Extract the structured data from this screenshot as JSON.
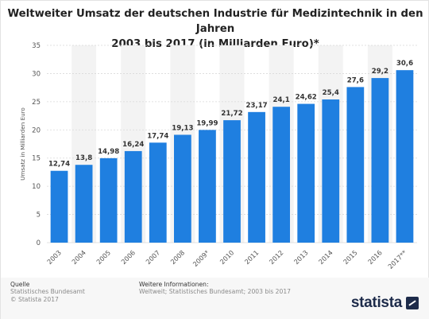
{
  "chart_data": {
    "type": "bar",
    "title_lines": [
      "Weltweiter Umsatz der deutschen Industrie für Medizintechnik in den Jahren",
      "2003 bis 2017 (in Milliarden Euro)*"
    ],
    "ylabel": "Umsatz in Milliarden Euro",
    "xlabel": "",
    "categories": [
      "2003",
      "2004",
      "2005",
      "2006",
      "2007",
      "2008",
      "2009*",
      "2010",
      "2011",
      "2012",
      "2013",
      "2014",
      "2015",
      "2016",
      "2017**"
    ],
    "values": [
      12.74,
      13.8,
      14.98,
      16.24,
      17.74,
      19.13,
      19.99,
      21.72,
      23.17,
      24.1,
      24.62,
      25.4,
      27.6,
      29.2,
      30.6
    ],
    "value_labels": [
      "12,74",
      "13,8",
      "14,98",
      "16,24",
      "17,74",
      "19,13",
      "19,99",
      "21,72",
      "23,17",
      "24,1",
      "24,62",
      "25,4",
      "27,6",
      "29,2",
      "30,6"
    ],
    "ylim": [
      0,
      35
    ],
    "yticks": [
      0,
      5,
      10,
      15,
      20,
      25,
      30,
      35
    ],
    "grid": true,
    "legend": "none",
    "colors": {
      "bar": "#1f7fe0",
      "grid": "#d9d9d9",
      "band": "#f3f3f3",
      "tick_text": "#555555",
      "label_text": "#333333"
    }
  },
  "footer": {
    "source_heading": "Quelle",
    "source_lines": [
      "Statistisches Bundesamt",
      "© Statista 2017"
    ],
    "info_heading": "Weitere Informationen:",
    "info_lines": [
      "Weltweit; Statistisches Bundesamt; 2003 bis 2017"
    ]
  },
  "brand": {
    "name": "statista",
    "icon": "statista-logo-icon"
  }
}
